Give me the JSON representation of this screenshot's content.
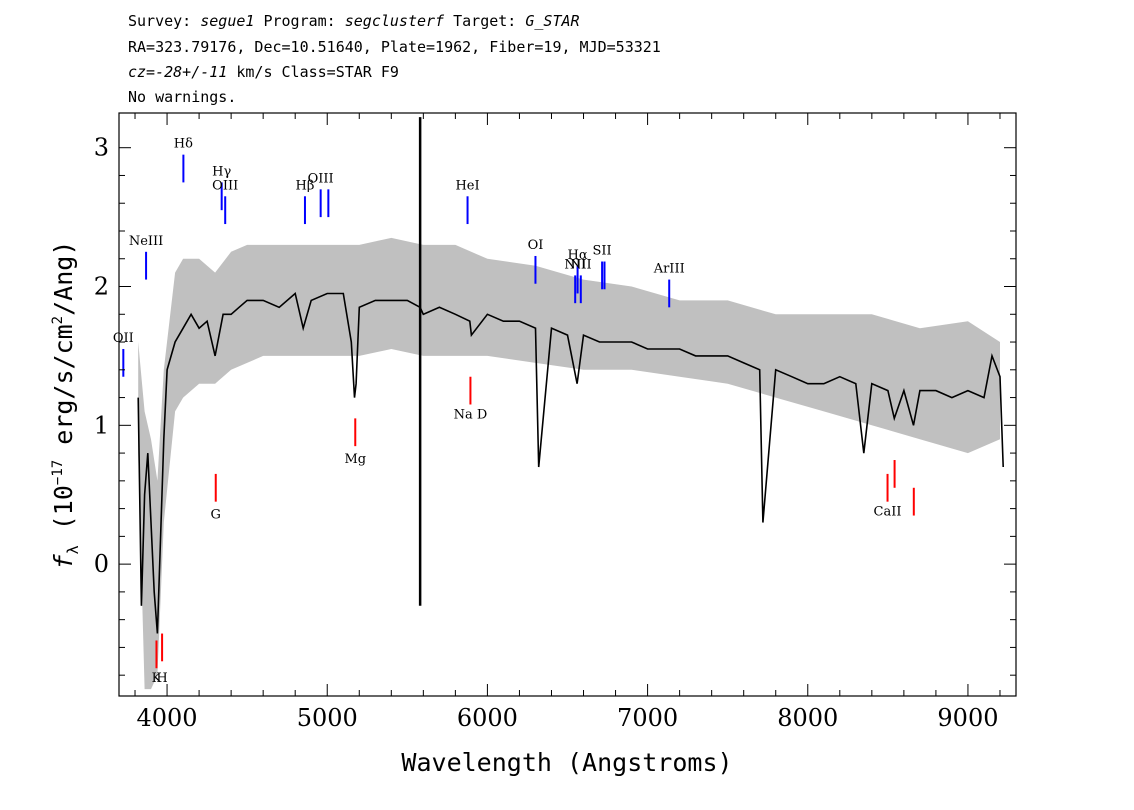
{
  "header": {
    "line1": {
      "survey_label": "Survey: ",
      "survey": "segue1",
      "program_label": " Program: ",
      "program": "segclusterf",
      "target_label": " Target: ",
      "target": "G_STAR"
    },
    "line2": "RA=323.79176, Dec=10.51640, Plate=1962, Fiber=19, MJD=53321",
    "line3": {
      "cz_label": "cz=",
      "cz_value": "-28+/-11",
      "cz_rest": " km/s Class=STAR F9"
    },
    "line4": "No warnings."
  },
  "chart_data": {
    "type": "line",
    "xlabel": "Wavelength (Angstroms)",
    "ylabel": "f_λ (10^-17 erg/s/cm^2/Ang)",
    "ylabel_parts": {
      "f": "f",
      "sub": "λ",
      "a": " (10",
      "exp1": "−17",
      "b": " erg/s/cm",
      "exp2": "2",
      "c": "/Ang)"
    },
    "xlim": [
      3700,
      9300
    ],
    "ylim": [
      -0.95,
      3.25
    ],
    "xticks": [
      4000,
      5000,
      6000,
      7000,
      8000,
      9000
    ],
    "yticks": [
      0,
      1,
      2,
      3
    ],
    "series": [
      {
        "color": "#000000",
        "x": [
          3820,
          3840,
          3860,
          3880,
          3900,
          3920,
          3940,
          3960,
          3980,
          4000,
          4050,
          4100,
          4150,
          4200,
          4250,
          4300,
          4350,
          4400,
          4450,
          4500,
          4600,
          4700,
          4800,
          4850,
          4900,
          5000,
          5100,
          5150,
          5170,
          5180,
          5200,
          5300,
          5400,
          5500,
          5580,
          5600,
          5700,
          5800,
          5890,
          5900,
          6000,
          6100,
          6200,
          6300,
          6320,
          6400,
          6500,
          6560,
          6600,
          6700,
          6800,
          6900,
          7000,
          7100,
          7200,
          7300,
          7400,
          7500,
          7600,
          7700,
          7720,
          7800,
          7900,
          8000,
          8100,
          8200,
          8300,
          8350,
          8400,
          8500,
          8540,
          8600,
          8660,
          8700,
          8800,
          8900,
          9000,
          9100,
          9150,
          9200,
          9220
        ],
        "y": [
          1.2,
          -0.3,
          0.5,
          0.8,
          0.3,
          -0.2,
          -0.5,
          0.2,
          0.9,
          1.4,
          1.6,
          1.7,
          1.8,
          1.7,
          1.75,
          1.5,
          1.8,
          1.8,
          1.85,
          1.9,
          1.9,
          1.85,
          1.95,
          1.7,
          1.9,
          1.95,
          1.95,
          1.6,
          1.2,
          1.3,
          1.85,
          1.9,
          1.9,
          1.9,
          1.85,
          1.8,
          1.85,
          1.8,
          1.75,
          1.65,
          1.8,
          1.75,
          1.75,
          1.7,
          0.7,
          1.7,
          1.65,
          1.3,
          1.65,
          1.6,
          1.6,
          1.6,
          1.55,
          1.55,
          1.55,
          1.5,
          1.5,
          1.5,
          1.45,
          1.4,
          0.3,
          1.4,
          1.35,
          1.3,
          1.3,
          1.35,
          1.3,
          0.8,
          1.3,
          1.25,
          1.05,
          1.25,
          1.0,
          1.25,
          1.25,
          1.2,
          1.25,
          1.2,
          1.5,
          1.35,
          0.7
        ],
        "spike_x": 5580,
        "spike_top": 3.22,
        "spike_bottom": -0.3
      },
      {
        "color": "#c0c0c0",
        "x": [
          3820,
          3860,
          3900,
          3940,
          3980,
          4050,
          4100,
          4200,
          4300,
          4400,
          4500,
          4600,
          4800,
          5000,
          5200,
          5400,
          5600,
          5800,
          6000,
          6300,
          6600,
          6900,
          7200,
          7500,
          7800,
          8100,
          8400,
          8700,
          9000,
          9200
        ],
        "y": [
          1.6,
          1.1,
          0.9,
          0.6,
          1.4,
          2.1,
          2.2,
          2.2,
          2.1,
          2.25,
          2.3,
          2.3,
          2.3,
          2.3,
          2.3,
          2.35,
          2.3,
          2.3,
          2.2,
          2.15,
          2.05,
          2.0,
          1.9,
          1.9,
          1.8,
          1.8,
          1.8,
          1.7,
          1.75,
          1.6
        ],
        "y_low": [
          0.8,
          -0.9,
          -0.9,
          -0.8,
          0.3,
          1.1,
          1.2,
          1.3,
          1.3,
          1.4,
          1.45,
          1.5,
          1.5,
          1.5,
          1.5,
          1.55,
          1.5,
          1.5,
          1.5,
          1.45,
          1.4,
          1.4,
          1.35,
          1.3,
          1.2,
          1.1,
          1.0,
          0.9,
          0.8,
          0.9
        ]
      }
    ],
    "emission_lines": [
      {
        "label": "OII",
        "x": 3727,
        "y0": 1.35,
        "y1": 1.55,
        "label_y": 1.6,
        "color": "#0000ff"
      },
      {
        "label": "NeIII",
        "x": 3869,
        "y0": 2.05,
        "y1": 2.25,
        "label_y": 2.3,
        "color": "#0000ff"
      },
      {
        "label": "Hδ",
        "x": 4102,
        "y0": 2.75,
        "y1": 2.95,
        "label_y": 3.0,
        "color": "#0000ff"
      },
      {
        "label": "Hγ",
        "x": 4341,
        "y0": 2.55,
        "y1": 2.75,
        "label_y": 2.8,
        "color": "#0000ff"
      },
      {
        "label": "OIII",
        "x": 4363,
        "y0": 2.45,
        "y1": 2.65,
        "label_y": 2.7,
        "color": "#0000ff"
      },
      {
        "label": "Hβ",
        "x": 4861,
        "y0": 2.45,
        "y1": 2.65,
        "label_y": 2.7,
        "color": "#0000ff"
      },
      {
        "label": "OIII",
        "x": 4959,
        "y0": 2.5,
        "y1": 2.7,
        "label_y": 2.75,
        "color": "#0000ff"
      },
      {
        "label": "",
        "x": 5007,
        "y0": 2.5,
        "y1": 2.7,
        "label_y": 2.75,
        "color": "#0000ff"
      },
      {
        "label": "HeI",
        "x": 5876,
        "y0": 2.45,
        "y1": 2.65,
        "label_y": 2.7,
        "color": "#0000ff"
      },
      {
        "label": "OI",
        "x": 6300,
        "y0": 2.02,
        "y1": 2.22,
        "label_y": 2.27,
        "color": "#0000ff"
      },
      {
        "label": "NII",
        "x": 6548,
        "y0": 1.88,
        "y1": 2.08,
        "label_y": 2.13,
        "color": "#0000ff"
      },
      {
        "label": "Hα",
        "x": 6563,
        "y0": 1.95,
        "y1": 2.15,
        "label_y": 2.2,
        "color": "#0000ff"
      },
      {
        "label": "NII",
        "x": 6583,
        "y0": 1.88,
        "y1": 2.08,
        "label_y": 2.13,
        "color": "#0000ff"
      },
      {
        "label": "SII",
        "x": 6716,
        "y0": 1.98,
        "y1": 2.18,
        "label_y": 2.23,
        "color": "#0000ff"
      },
      {
        "label": "",
        "x": 6731,
        "y0": 1.98,
        "y1": 2.18,
        "label_y": 2.23,
        "color": "#0000ff"
      },
      {
        "label": "ArIII",
        "x": 7135,
        "y0": 1.85,
        "y1": 2.05,
        "label_y": 2.1,
        "color": "#0000ff"
      }
    ],
    "absorption_lines": [
      {
        "label": "K",
        "x": 3934,
        "y0": -0.75,
        "y1": -0.55,
        "label_y": -0.85,
        "color": "#ff0000"
      },
      {
        "label": "H",
        "x": 3969,
        "y0": -0.7,
        "y1": -0.5,
        "label_y": -0.85,
        "color": "#ff0000"
      },
      {
        "label": "G",
        "x": 4304,
        "y0": 0.45,
        "y1": 0.65,
        "label_y": 0.33,
        "color": "#ff0000"
      },
      {
        "label": "Mg",
        "x": 5175,
        "y0": 0.85,
        "y1": 1.05,
        "label_y": 0.73,
        "color": "#ff0000"
      },
      {
        "label": "Na D",
        "x": 5894,
        "y0": 1.15,
        "y1": 1.35,
        "label_y": 1.05,
        "color": "#ff0000"
      },
      {
        "label": "CaII",
        "x": 8498,
        "y0": 0.45,
        "y1": 0.65,
        "label_y": 0.35,
        "color": "#ff0000"
      },
      {
        "label": "",
        "x": 8542,
        "y0": 0.55,
        "y1": 0.75,
        "label_y": 0.35,
        "color": "#ff0000"
      },
      {
        "label": "",
        "x": 8662,
        "y0": 0.35,
        "y1": 0.55,
        "label_y": 0.35,
        "color": "#ff0000"
      }
    ],
    "grid": false
  }
}
